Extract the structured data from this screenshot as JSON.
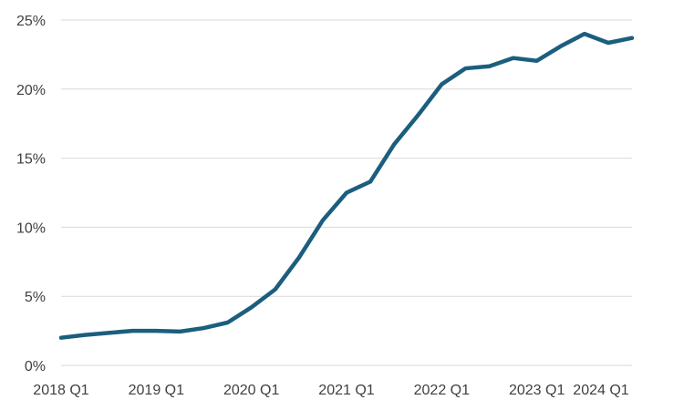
{
  "chart_data": {
    "type": "line",
    "title": "",
    "xlabel": "",
    "ylabel": "",
    "x": [
      "2018 Q1",
      "2018 Q2",
      "2018 Q3",
      "2018 Q4",
      "2019 Q1",
      "2019 Q2",
      "2019 Q3",
      "2019 Q4",
      "2020 Q1",
      "2020 Q2",
      "2020 Q3",
      "2020 Q4",
      "2021 Q1",
      "2021 Q2",
      "2021 Q3",
      "2021 Q4",
      "2022 Q1",
      "2022 Q2",
      "2022 Q3",
      "2022 Q4",
      "2023 Q1",
      "2023 Q2",
      "2023 Q3",
      "2023 Q4",
      "2024 Q1"
    ],
    "x_tick_labels": [
      "2018 Q1",
      "2019 Q1",
      "2020 Q1",
      "2021 Q1",
      "2022 Q1",
      "2023 Q1",
      "2024 Q1"
    ],
    "series": [
      {
        "color": "#1b5e7e",
        "values": [
          2.0,
          2.2,
          2.35,
          2.5,
          2.5,
          2.45,
          2.7,
          3.1,
          4.2,
          5.5,
          7.8,
          10.5,
          12.5,
          13.3,
          16.0,
          18.1,
          20.35,
          21.5,
          21.65,
          22.25,
          22.05,
          23.1,
          24.0,
          23.35,
          23.7
        ]
      }
    ],
    "y_ticks": [
      0,
      5,
      10,
      15,
      20,
      25
    ],
    "y_tick_labels": [
      "0%",
      "5%",
      "10%",
      "15%",
      "20%",
      "25%"
    ],
    "ylim": [
      0,
      25
    ],
    "grid": true,
    "legend": "none"
  }
}
